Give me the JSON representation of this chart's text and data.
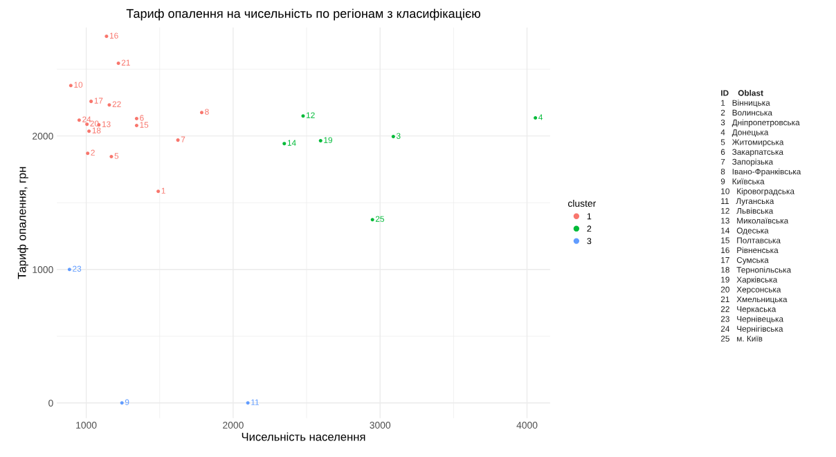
{
  "chart_data": [
    {
      "type": "scatter",
      "title": "Тариф опалення на чисельність по регіонам з класифікацією",
      "xlabel": "Чисельність населення",
      "ylabel": "Тариф опалення, грн",
      "legend_title": "cluster",
      "legend": "right",
      "grid": true,
      "marker": "circle",
      "xlim": [
        800,
        4157
      ],
      "xticks": [
        1000,
        {
          "value": 1500,
          "label": null
        },
        2000,
        {
          "value": 2500,
          "label": null
        },
        3000,
        {
          "value": 3500,
          "label": null
        },
        4000
      ],
      "ylim": [
        -114,
        2813
      ],
      "yticks": [
        0,
        {
          "value": 500,
          "label": null
        },
        1000,
        {
          "value": 1500,
          "label": null
        },
        2000,
        {
          "value": 2500,
          "label": null
        }
      ],
      "series": [
        {
          "name": "1",
          "color": "#f8766d",
          "x": [
            1490,
            1010,
            1343,
            1624,
            1786,
            895,
            1086,
            1343,
            1138,
            1033,
            1019,
            1005,
            1219,
            1157,
            952,
            1171
          ],
          "values": [
            1585,
            1870,
            2130,
            1969,
            2176,
            2378,
            2083,
            2078,
            2746,
            2259,
            2036,
            2088,
            2544,
            2233,
            2119,
            1845
          ]
        },
        {
          "name": "2",
          "color": "#00ba38",
          "x": [
            3090,
            4057,
            2476,
            2348,
            2595,
            2948
          ],
          "values": [
            1995,
            2135,
            2150,
            1943,
            1964,
            1373
          ]
        },
        {
          "name": "3",
          "color": "#619cff",
          "x": [
            1243,
            2100,
            886
          ],
          "values": [
            0,
            0,
            1000
          ]
        }
      ],
      "annotations": [
        {
          "text": "1",
          "x": 1490,
          "y": 1585
        },
        {
          "text": "2",
          "x": 1010,
          "y": 1870
        },
        {
          "text": "6",
          "x": 1343,
          "y": 2130
        },
        {
          "text": "7",
          "x": 1624,
          "y": 1969
        },
        {
          "text": "8",
          "x": 1786,
          "y": 2176
        },
        {
          "text": "10",
          "x": 895,
          "y": 2378
        },
        {
          "text": "13",
          "x": 1086,
          "y": 2083
        },
        {
          "text": "15",
          "x": 1343,
          "y": 2078
        },
        {
          "text": "16",
          "x": 1138,
          "y": 2746
        },
        {
          "text": "17",
          "x": 1033,
          "y": 2259
        },
        {
          "text": "18",
          "x": 1019,
          "y": 2036
        },
        {
          "text": "20",
          "x": 1005,
          "y": 2088
        },
        {
          "text": "21",
          "x": 1219,
          "y": 2544
        },
        {
          "text": "22",
          "x": 1157,
          "y": 2233
        },
        {
          "text": "24",
          "x": 952,
          "y": 2119
        },
        {
          "text": "5",
          "x": 1171,
          "y": 1845
        },
        {
          "text": "3",
          "x": 3090,
          "y": 1995
        },
        {
          "text": "4",
          "x": 4057,
          "y": 2135
        },
        {
          "text": "12",
          "x": 2476,
          "y": 2150
        },
        {
          "text": "14",
          "x": 2348,
          "y": 1943
        },
        {
          "text": "19",
          "x": 2595,
          "y": 1964
        },
        {
          "text": "25",
          "x": 2948,
          "y": 1373
        },
        {
          "text": "9",
          "x": 1243,
          "y": 0
        },
        {
          "text": "11",
          "x": 2100,
          "y": 0
        },
        {
          "text": "23",
          "x": 886,
          "y": 1000
        }
      ]
    },
    {
      "type": "other",
      "annotations": [
        "ID    Oblast",
        "1   Вінницька",
        "2   Волинська",
        "3   Дніпропетровська",
        "4   Донецька",
        "5   Житомирська",
        "6   Закарпатська",
        "7   Запорізька",
        "8   Івано-Франківська",
        "9   Київська",
        "10   Кіровоградська",
        "11   Луганська",
        "12   Львівська",
        "13   Миколаївська",
        "14   Одеська",
        "15   Полтавська",
        "16   Рівненська",
        "17   Сумська",
        "18   Тернопільська",
        "19   Харківська",
        "20   Херсонська",
        "21   Хмельницька",
        "22   Черкаська",
        "23   Чернівецька",
        "24   Чернігівська",
        "25   м. Київ"
      ]
    }
  ]
}
